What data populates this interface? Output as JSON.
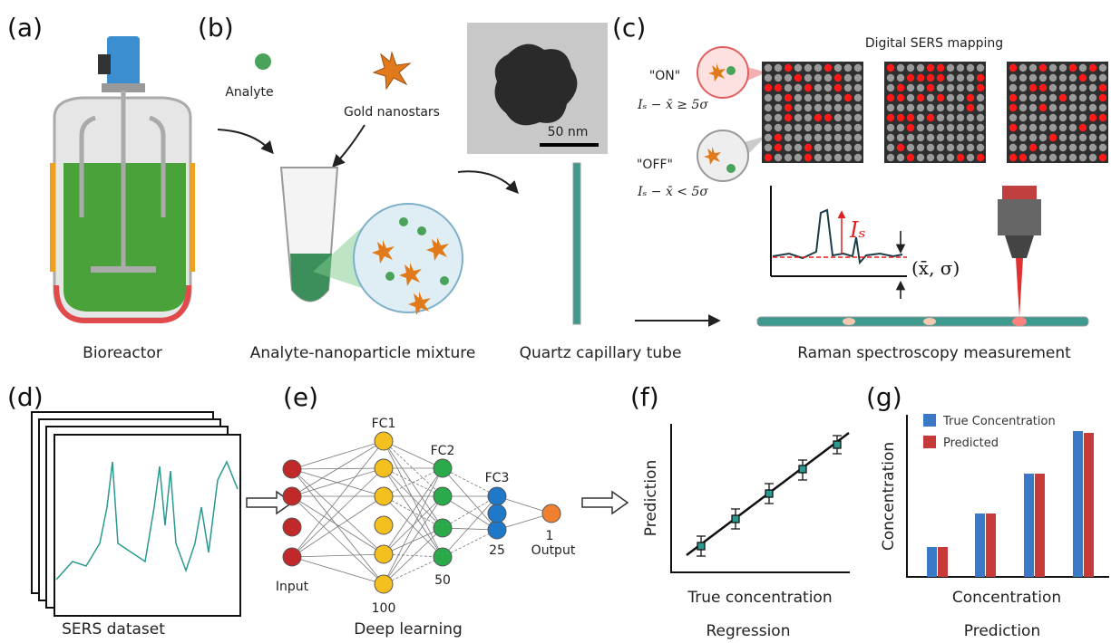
{
  "panels": {
    "a": {
      "label": "(a)",
      "caption": "Bioreactor"
    },
    "b": {
      "label": "(b)",
      "analyte": "Analyte",
      "nanostars": "Gold nanostars",
      "scale_bar": "50 nm",
      "caption": "Analyte-nanoparticle mixture",
      "tube_caption": "Quartz capillary tube"
    },
    "c": {
      "label": "(c)",
      "mapping_title": "Digital SERS mapping",
      "on": "\"ON\"",
      "on_rule": "Iₛ − x̄ ≥ 5σ",
      "off": "\"OFF\"",
      "off_rule": "Iₛ − x̄ < 5σ",
      "signal": "Iₛ",
      "baseline": "(x̄, σ)",
      "caption": "Raman spectroscopy measurement"
    },
    "d": {
      "label": "(d)",
      "caption": "SERS dataset"
    },
    "e": {
      "label": "(e)",
      "fc1": "FC1",
      "fc2": "FC2",
      "fc3": "FC3",
      "input": "Input",
      "n_fc1": "100",
      "n_fc2": "50",
      "n_fc3": "25",
      "n_out": "1",
      "output": "Output",
      "caption": "Deep learning"
    },
    "f": {
      "label": "(f)",
      "y_label": "Prediction",
      "x_label": "True concentration",
      "caption": "Regression"
    },
    "g": {
      "label": "(g)",
      "legend": [
        "True Concentration",
        "Predicted"
      ],
      "y_label": "Concentration",
      "x_label": "Concentration",
      "caption": "Prediction"
    }
  }
}
